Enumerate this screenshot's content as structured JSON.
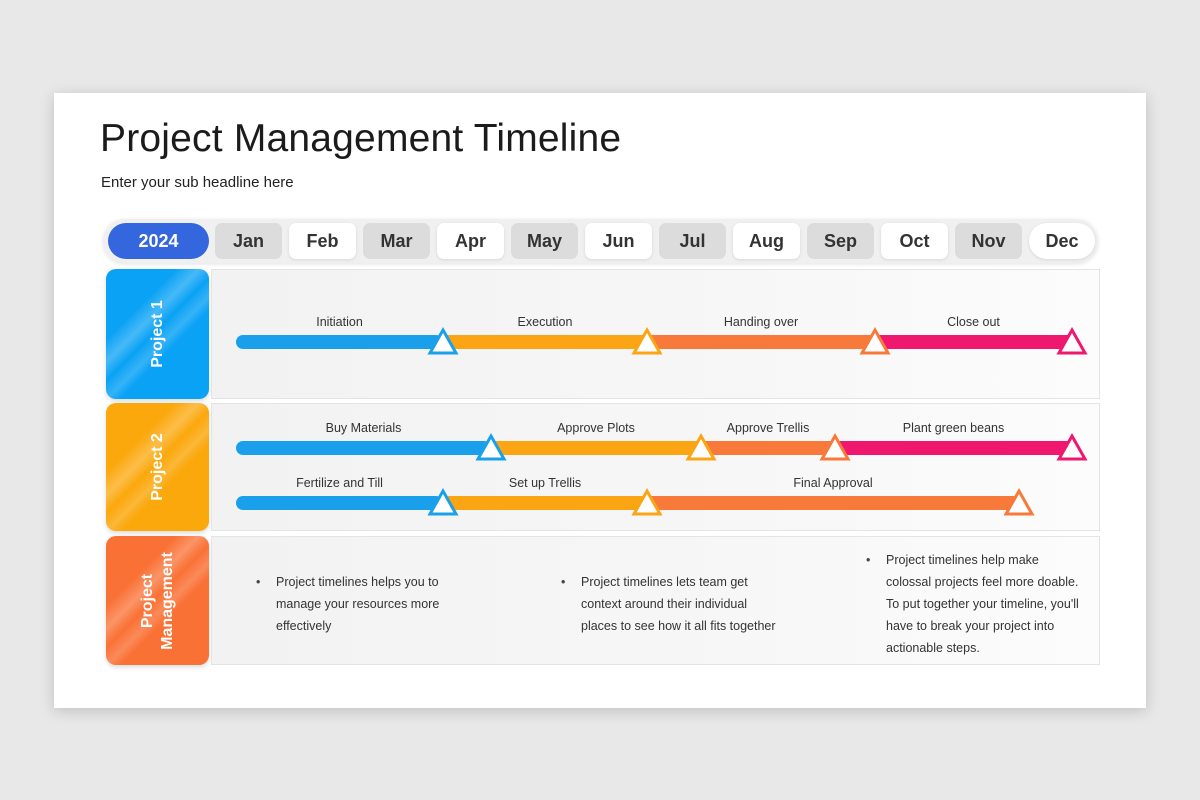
{
  "title": "Project Management Timeline",
  "subtitle": "Enter your sub headline here",
  "year": "2024",
  "months": [
    "Jan",
    "Feb",
    "Mar",
    "Apr",
    "May",
    "Jun",
    "Jul",
    "Aug",
    "Sep",
    "Oct",
    "Nov",
    "Dec"
  ],
  "rows": [
    {
      "label": "Project 1",
      "color": "#0aa2f5"
    },
    {
      "label": "Project 2",
      "color": "#fba80c"
    },
    {
      "label": "Project Management",
      "color": "#fa7135"
    }
  ],
  "colors": {
    "year_pill": "#3466de",
    "blue": "#1aa0ea",
    "orange": "#fba515",
    "coral": "#f77a3a",
    "pink": "#f0176f"
  },
  "tracks": [
    {
      "segments": [
        {
          "label": "Initiation",
          "color": "blue"
        },
        {
          "label": "Execution",
          "color": "orange"
        },
        {
          "label": "Handing over",
          "color": "coral"
        },
        {
          "label": "Close out",
          "color": "pink"
        }
      ]
    },
    {
      "segments": [
        {
          "label": "Buy Materials",
          "color": "blue"
        },
        {
          "label": "Approve Plots",
          "color": "orange"
        },
        {
          "label": "Approve Trellis",
          "color": "coral"
        },
        {
          "label": "Plant green beans",
          "color": "pink"
        }
      ]
    },
    {
      "segments": [
        {
          "label": "Fertilize and Till",
          "color": "blue"
        },
        {
          "label": "Set up Trellis",
          "color": "orange"
        },
        {
          "label": "Final Approval",
          "color": "coral"
        }
      ]
    }
  ],
  "notes": [
    {
      "lines": [
        "Project timelines helps you to",
        "manage your resources more",
        "effectively"
      ]
    },
    {
      "lines": [
        "Project timelines lets team get",
        "context around their individual",
        "places to see how it all fits together"
      ]
    },
    {
      "lines": [
        "Project timelines help make",
        "colossal projects feel more doable.",
        "To put together your timeline, you'll",
        "have to break your project into",
        "actionable steps."
      ]
    }
  ]
}
